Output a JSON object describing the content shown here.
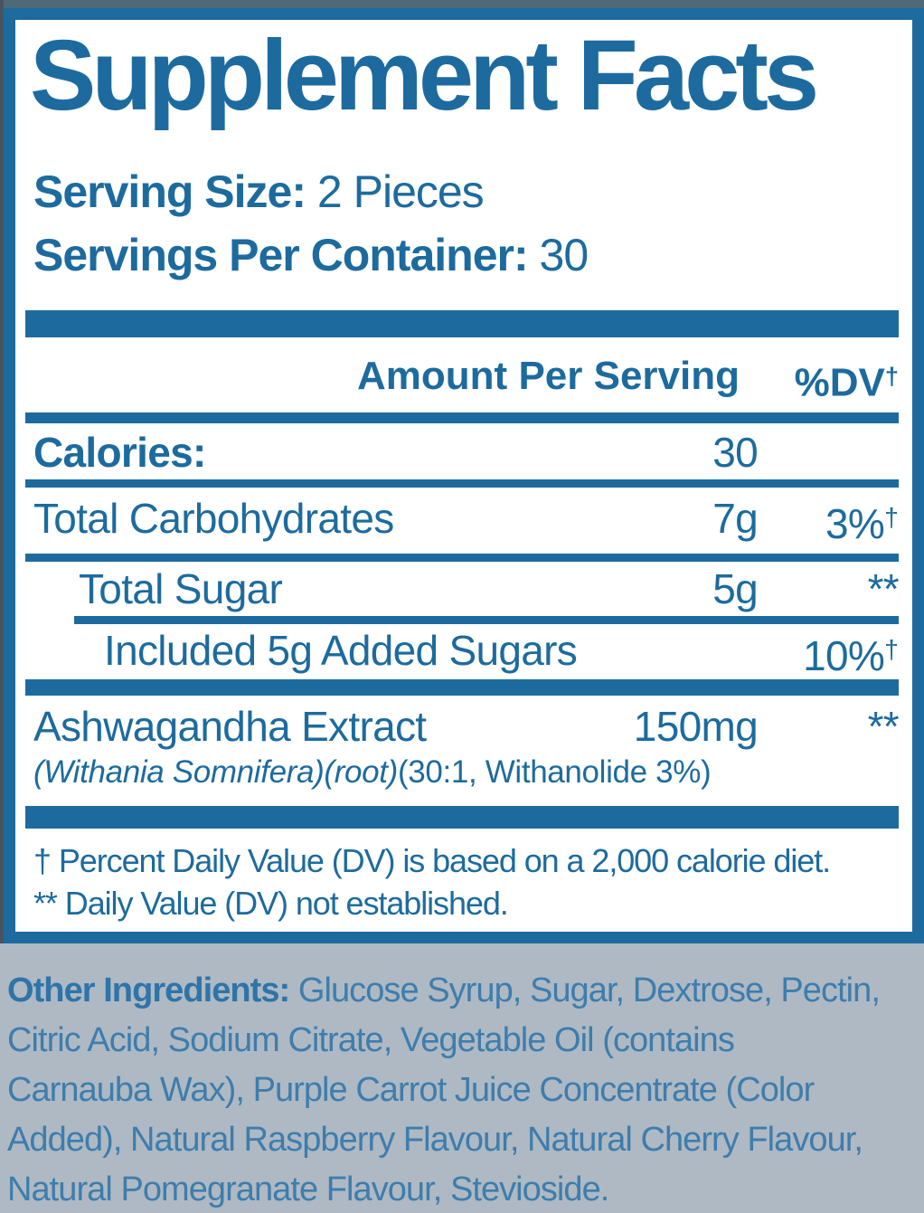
{
  "label": {
    "title": "Supplement Facts",
    "serving": {
      "size_label": "Serving Size:",
      "size_value": "2 Pieces",
      "container_label": "Servings Per Container:",
      "container_value": "30"
    },
    "table": {
      "header": {
        "amount_label": "Amount Per Serving",
        "dv_label": "%DV",
        "dv_sup": "†"
      },
      "rows": [
        {
          "name": "Calories:",
          "amount": "30",
          "dv": "",
          "dv_sup": ""
        },
        {
          "name": "Total Carbohydrates",
          "amount": "7g",
          "dv": "3%",
          "dv_sup": "†"
        },
        {
          "name": "Total Sugar",
          "amount": "5g",
          "dv": "**",
          "dv_sup": ""
        },
        {
          "name": "Included 5g Added Sugars",
          "amount": "",
          "dv": "10%",
          "dv_sup": "†"
        },
        {
          "name": "Ashwagandha Extract",
          "amount": "150mg",
          "dv": "**",
          "dv_sup": "",
          "sub_italic": "(Withania Somnifera)(root)",
          "sub_plain": "(30:1, Withanolide 3%)"
        }
      ],
      "footnotes": [
        "† Percent Daily Value (DV) is based on a 2,000 calorie diet.",
        "** Daily Value (DV) not established."
      ]
    },
    "other_ingredients": {
      "label": "Other Ingredients:",
      "first_line_rest": "Glucose Syrup, Sugar, Dextrose, Pectin,",
      "lines": [
        "Citric Acid, Sodium Citrate, Vegetable Oil (contains",
        "Carnauba Wax), Purple Carrot Juice Concentrate (Color",
        "Added), Natural Raspberry Flavour, Natural Cherry Flavour,",
        "Natural Pomegranate Flavour, Stevioside."
      ]
    }
  },
  "colors": {
    "primary_blue": "#1d6b9e",
    "top_strip": "#4e6978",
    "left_strip": "#47545e",
    "bottom_background": "#aeb9c3",
    "ingredients_text": "#3e7dad"
  }
}
